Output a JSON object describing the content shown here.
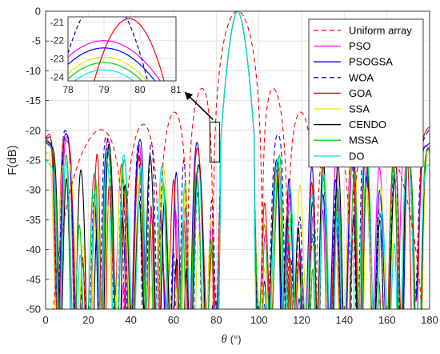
{
  "chart_data": {
    "type": "line",
    "title": "",
    "xlabel_symbol": "θ",
    "xlabel_unit": "(°)",
    "ylabel": "F(dB)",
    "xlim": [
      0,
      180
    ],
    "ylim": [
      -50,
      0
    ],
    "x_ticks": [
      "0",
      "20",
      "40",
      "60",
      "80",
      "100",
      "120",
      "140",
      "160",
      "180"
    ],
    "y_ticks": [
      "0",
      "-5",
      "-10",
      "-15",
      "-20",
      "-25",
      "-30",
      "-35",
      "-40",
      "-45",
      "-50"
    ],
    "grid": true,
    "legend_position": "top-right",
    "series": [
      {
        "name": "Uniform array",
        "color": "#ff0000",
        "style": "dashed",
        "sidelobe_peak": -13.3
      },
      {
        "name": "PSO",
        "color": "#ff00ff",
        "style": "solid",
        "sidelobe_peak": -21.6
      },
      {
        "name": "PSOGSA",
        "color": "#0000ff",
        "style": "solid",
        "sidelobe_peak": -22.3
      },
      {
        "name": "WOA",
        "color": "#0000cd",
        "style": "dashed",
        "sidelobe_peak": -19.2
      },
      {
        "name": "GOA",
        "color": "#ff0000",
        "style": "solid",
        "sidelobe_peak": -20.8
      },
      {
        "name": "SSA",
        "color": "#e6e600",
        "style": "solid",
        "sidelobe_peak": -22.8
      },
      {
        "name": "CENDO",
        "color": "#000000",
        "style": "solid",
        "sidelobe_peak": -22.5
      },
      {
        "name": "MSSA",
        "color": "#00d000",
        "style": "solid",
        "sidelobe_peak": -23.0
      },
      {
        "name": "DO",
        "color": "#00e5ee",
        "style": "solid",
        "sidelobe_peak": -23.4
      }
    ],
    "inset": {
      "xlim": [
        78,
        81
      ],
      "ylim": [
        -24.2,
        -20.7
      ],
      "x_ticks": [
        "78",
        "79",
        "80",
        "81"
      ],
      "y_ticks": [
        "-21",
        "-22",
        "-23",
        "-24"
      ],
      "zoom_box": {
        "x": [
          77,
          81.5
        ],
        "y": [
          -25.3,
          -18.6
        ]
      },
      "peak_x": 79,
      "peaks": [
        {
          "series": "PSO",
          "y": -22.0
        },
        {
          "series": "PSOGSA",
          "y": -22.4
        },
        {
          "series": "SSA",
          "y": -22.9
        },
        {
          "series": "MSSA",
          "y": -23.2
        },
        {
          "series": "DO",
          "y": -23.6
        }
      ]
    }
  }
}
